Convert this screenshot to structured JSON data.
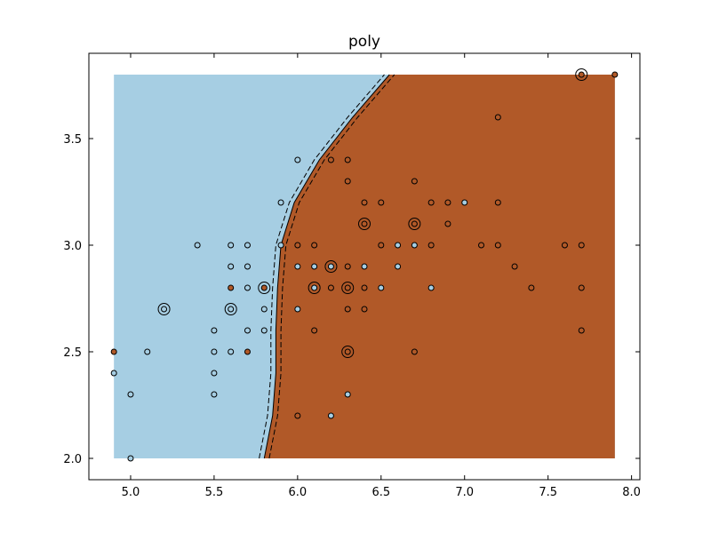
{
  "chart_data": {
    "type": "scatter",
    "title": "poly",
    "xlabel": "",
    "ylabel": "",
    "xlim": [
      4.75,
      8.05
    ],
    "ylim": [
      1.9,
      3.9
    ],
    "x_ticks": [
      "5.0",
      "5.5",
      "6.0",
      "6.5",
      "7.0",
      "7.5",
      "8.0"
    ],
    "y_ticks": [
      "2.0",
      "2.5",
      "3.0",
      "3.5"
    ],
    "grid": false,
    "legend": "none",
    "colors": {
      "class_0": "#a6cee3",
      "class_1": "#b15928",
      "background": "#ffffff",
      "edge": "#000000"
    },
    "region_x": [
      4.9,
      7.9
    ],
    "region_y": [
      2.0,
      3.8
    ],
    "decision_boundary": [
      [
        5.8,
        2.0
      ],
      [
        5.85,
        2.2
      ],
      [
        5.87,
        2.4
      ],
      [
        5.87,
        2.6
      ],
      [
        5.88,
        2.8
      ],
      [
        5.9,
        3.0
      ],
      [
        5.98,
        3.2
      ],
      [
        6.13,
        3.4
      ],
      [
        6.33,
        3.6
      ],
      [
        6.55,
        3.8
      ]
    ],
    "margin_offset": 0.03,
    "points": [
      {
        "x": 4.9,
        "y": 2.5,
        "c": 1
      },
      {
        "x": 4.9,
        "y": 2.4,
        "c": 0
      },
      {
        "x": 5.0,
        "y": 2.3,
        "c": 0
      },
      {
        "x": 5.0,
        "y": 2.0,
        "c": 0
      },
      {
        "x": 5.1,
        "y": 2.5,
        "c": 0
      },
      {
        "x": 5.2,
        "y": 2.7,
        "c": 0
      },
      {
        "x": 5.4,
        "y": 3.0,
        "c": 0
      },
      {
        "x": 5.5,
        "y": 2.6,
        "c": 0
      },
      {
        "x": 5.5,
        "y": 2.5,
        "c": 0
      },
      {
        "x": 5.5,
        "y": 2.4,
        "c": 0
      },
      {
        "x": 5.5,
        "y": 2.3,
        "c": 0
      },
      {
        "x": 5.6,
        "y": 3.0,
        "c": 0
      },
      {
        "x": 5.6,
        "y": 2.9,
        "c": 0
      },
      {
        "x": 5.6,
        "y": 2.8,
        "c": 1
      },
      {
        "x": 5.6,
        "y": 2.7,
        "c": 0
      },
      {
        "x": 5.6,
        "y": 2.5,
        "c": 0
      },
      {
        "x": 5.7,
        "y": 3.0,
        "c": 0
      },
      {
        "x": 5.7,
        "y": 2.9,
        "c": 0
      },
      {
        "x": 5.7,
        "y": 2.8,
        "c": 0
      },
      {
        "x": 5.7,
        "y": 2.6,
        "c": 0
      },
      {
        "x": 5.7,
        "y": 2.5,
        "c": 1
      },
      {
        "x": 5.8,
        "y": 2.8,
        "c": 1
      },
      {
        "x": 5.8,
        "y": 2.7,
        "c": 0
      },
      {
        "x": 5.8,
        "y": 2.6,
        "c": 0
      },
      {
        "x": 5.9,
        "y": 3.2,
        "c": 0
      },
      {
        "x": 5.9,
        "y": 3.0,
        "c": 0
      },
      {
        "x": 6.0,
        "y": 3.4,
        "c": 0
      },
      {
        "x": 6.0,
        "y": 3.0,
        "c": 1
      },
      {
        "x": 6.0,
        "y": 2.9,
        "c": 0
      },
      {
        "x": 6.0,
        "y": 2.7,
        "c": 0
      },
      {
        "x": 6.0,
        "y": 2.2,
        "c": 1
      },
      {
        "x": 6.1,
        "y": 3.0,
        "c": 1
      },
      {
        "x": 6.1,
        "y": 2.9,
        "c": 0
      },
      {
        "x": 6.1,
        "y": 2.8,
        "c": 0
      },
      {
        "x": 6.1,
        "y": 2.6,
        "c": 1
      },
      {
        "x": 6.2,
        "y": 3.4,
        "c": 1
      },
      {
        "x": 6.2,
        "y": 2.9,
        "c": 0
      },
      {
        "x": 6.2,
        "y": 2.8,
        "c": 1
      },
      {
        "x": 6.2,
        "y": 2.2,
        "c": 0
      },
      {
        "x": 6.3,
        "y": 3.4,
        "c": 1
      },
      {
        "x": 6.3,
        "y": 3.3,
        "c": 1
      },
      {
        "x": 6.3,
        "y": 2.9,
        "c": 1
      },
      {
        "x": 6.3,
        "y": 2.8,
        "c": 1
      },
      {
        "x": 6.3,
        "y": 2.7,
        "c": 1
      },
      {
        "x": 6.3,
        "y": 2.5,
        "c": 1
      },
      {
        "x": 6.3,
        "y": 2.3,
        "c": 0
      },
      {
        "x": 6.4,
        "y": 3.2,
        "c": 1
      },
      {
        "x": 6.4,
        "y": 3.1,
        "c": 1
      },
      {
        "x": 6.4,
        "y": 2.9,
        "c": 0
      },
      {
        "x": 6.4,
        "y": 2.8,
        "c": 1
      },
      {
        "x": 6.4,
        "y": 2.7,
        "c": 1
      },
      {
        "x": 6.5,
        "y": 3.2,
        "c": 1
      },
      {
        "x": 6.5,
        "y": 3.0,
        "c": 1
      },
      {
        "x": 6.5,
        "y": 2.8,
        "c": 0
      },
      {
        "x": 6.6,
        "y": 3.0,
        "c": 0
      },
      {
        "x": 6.6,
        "y": 2.9,
        "c": 0
      },
      {
        "x": 6.7,
        "y": 3.3,
        "c": 1
      },
      {
        "x": 6.7,
        "y": 3.1,
        "c": 1
      },
      {
        "x": 6.7,
        "y": 3.0,
        "c": 0
      },
      {
        "x": 6.7,
        "y": 2.5,
        "c": 1
      },
      {
        "x": 6.8,
        "y": 3.2,
        "c": 1
      },
      {
        "x": 6.8,
        "y": 3.0,
        "c": 1
      },
      {
        "x": 6.8,
        "y": 2.8,
        "c": 0
      },
      {
        "x": 6.9,
        "y": 3.2,
        "c": 1
      },
      {
        "x": 6.9,
        "y": 3.1,
        "c": 1
      },
      {
        "x": 7.0,
        "y": 3.2,
        "c": 0
      },
      {
        "x": 7.1,
        "y": 3.0,
        "c": 1
      },
      {
        "x": 7.2,
        "y": 3.6,
        "c": 1
      },
      {
        "x": 7.2,
        "y": 3.2,
        "c": 1
      },
      {
        "x": 7.2,
        "y": 3.0,
        "c": 1
      },
      {
        "x": 7.3,
        "y": 2.9,
        "c": 1
      },
      {
        "x": 7.4,
        "y": 2.8,
        "c": 1
      },
      {
        "x": 7.6,
        "y": 3.0,
        "c": 1
      },
      {
        "x": 7.7,
        "y": 3.8,
        "c": 1
      },
      {
        "x": 7.7,
        "y": 3.0,
        "c": 1
      },
      {
        "x": 7.7,
        "y": 2.8,
        "c": 1
      },
      {
        "x": 7.7,
        "y": 2.6,
        "c": 1
      },
      {
        "x": 7.9,
        "y": 3.8,
        "c": 1
      }
    ],
    "support_vectors": [
      {
        "x": 5.2,
        "y": 2.7
      },
      {
        "x": 5.6,
        "y": 2.7
      },
      {
        "x": 5.8,
        "y": 2.8
      },
      {
        "x": 6.1,
        "y": 2.8
      },
      {
        "x": 6.2,
        "y": 2.9
      },
      {
        "x": 6.3,
        "y": 2.8
      },
      {
        "x": 6.3,
        "y": 2.5
      },
      {
        "x": 6.4,
        "y": 3.1
      },
      {
        "x": 6.7,
        "y": 3.1
      },
      {
        "x": 7.7,
        "y": 3.8
      }
    ]
  }
}
